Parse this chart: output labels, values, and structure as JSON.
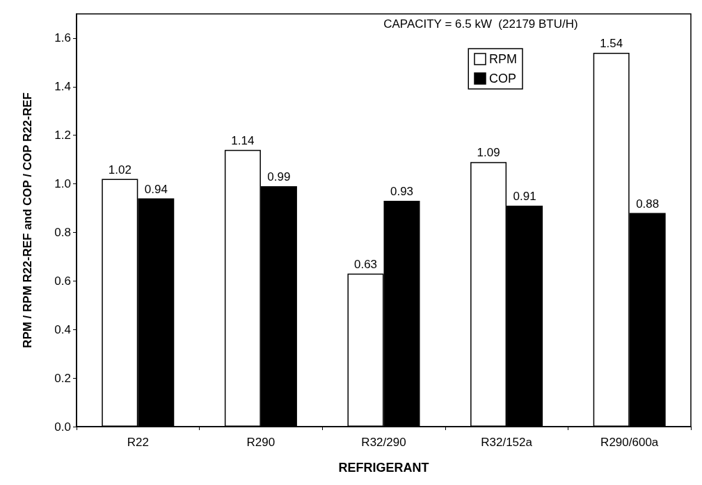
{
  "chart_data": {
    "type": "bar",
    "xlabel": "REFRIGERANT",
    "ylabel": "RPM / RPM R22-REF and COP / COP R22-REF",
    "annotations": [
      "CAPACITY = 6.5 kW  (22179 BTU/H)"
    ],
    "categories": [
      "R22",
      "R290",
      "R32/290",
      "R32/152a",
      "R290/600a"
    ],
    "series": [
      {
        "name": "RPM",
        "color": "#ffffff",
        "values": [
          1.02,
          1.14,
          0.63,
          1.09,
          1.54
        ]
      },
      {
        "name": "COP",
        "color": "#000000",
        "values": [
          0.94,
          0.99,
          0.93,
          0.91,
          0.88
        ]
      }
    ],
    "ylim": [
      0,
      1.7
    ],
    "yticks": [
      {
        "value": 0,
        "label": "0.0"
      },
      0.2,
      0.4,
      0.6,
      0.8,
      {
        "value": 1,
        "label": "1.0"
      },
      1.2,
      1.4,
      1.6
    ],
    "data_labels": true,
    "grid": false,
    "legend": "top right"
  }
}
